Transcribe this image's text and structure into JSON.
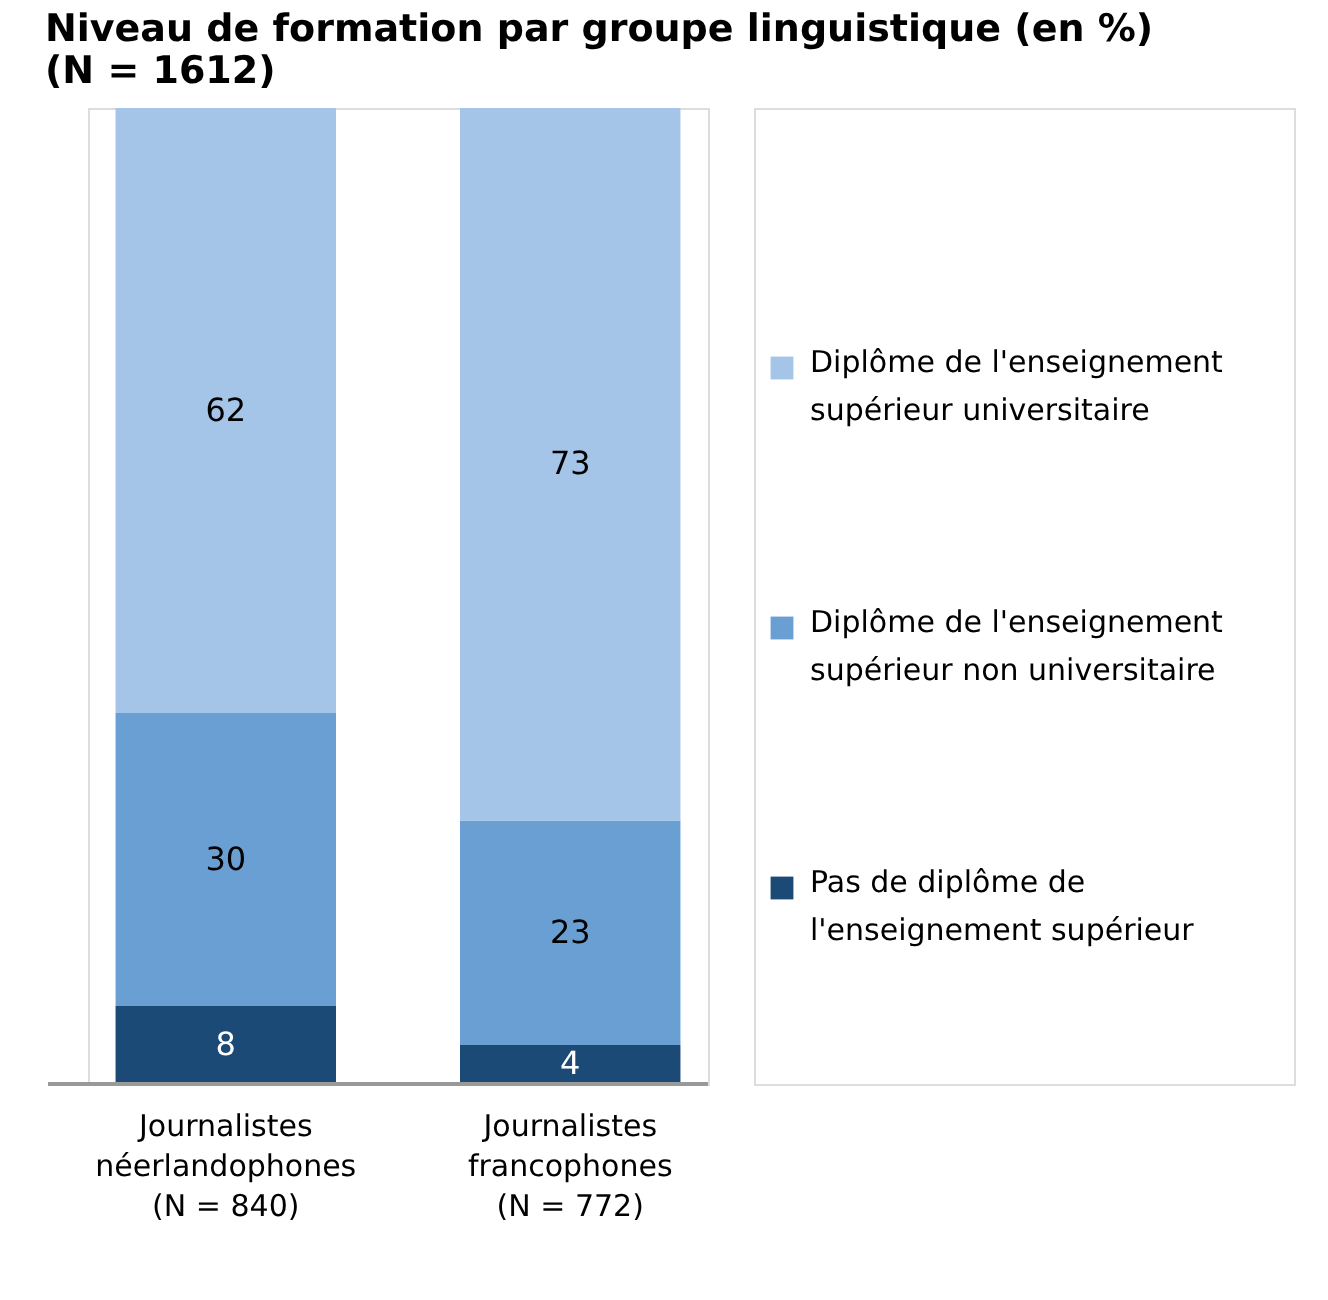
{
  "chart_data": {
    "type": "bar",
    "title": "Niveau de formation par groupe linguistique (en %) (N = 1612)",
    "categories": [
      "Journalistes néerlandophones (N = 840)",
      "Journalistes francophones (N = 772)"
    ],
    "stacked": true,
    "data_labels": true,
    "legend": "right",
    "tick_labels": "x",
    "series": [
      {
        "name": "Pas de diplôme de l'enseignement supérieur",
        "color": "#1b4a76",
        "values": [
          8,
          4
        ]
      },
      {
        "name": "Diplôme de l'enseignement supérieur non universitaire",
        "color": "#6a9fd4",
        "values": [
          30,
          23
        ]
      },
      {
        "name": "Diplôme de l'enseignement supérieur universitaire",
        "color": "#a4c4e8",
        "values": [
          62,
          73
        ]
      }
    ]
  }
}
